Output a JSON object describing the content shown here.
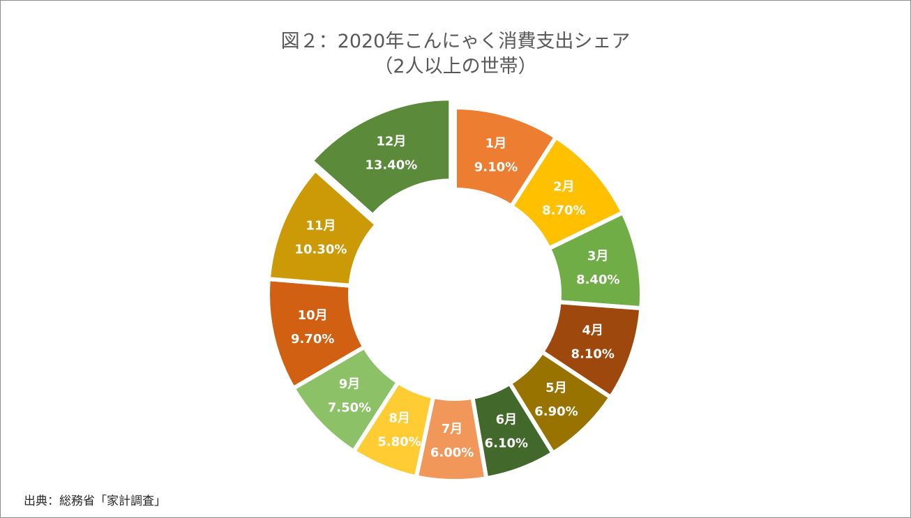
{
  "chart_data": {
    "type": "pie",
    "variant": "donut",
    "title": "図２：2020年こんにゃく消費支出シェア",
    "subtitle": "（2人以上の世帯）",
    "categories": [
      "1月",
      "2月",
      "3月",
      "4月",
      "5月",
      "6月",
      "7月",
      "8月",
      "9月",
      "10月",
      "11月",
      "12月"
    ],
    "values": [
      9.1,
      8.7,
      8.4,
      8.1,
      6.9,
      6.1,
      6.0,
      5.8,
      7.5,
      9.7,
      10.3,
      13.4
    ],
    "value_labels": [
      "9.10%",
      "8.70%",
      "8.40%",
      "8.10%",
      "6.90%",
      "6.10%",
      "6.00%",
      "5.80%",
      "7.50%",
      "9.70%",
      "10.30%",
      "13.40%"
    ],
    "colors": [
      "#ED7D31",
      "#FFC000",
      "#70AD47",
      "#9E480E",
      "#997300",
      "#43682B",
      "#F1975A",
      "#FFCD33",
      "#8CC168",
      "#D26012",
      "#CC9A06",
      "#5A8A3A"
    ],
    "exploded": [
      "12月"
    ],
    "legend": "none",
    "source": "出典：総務省「家計調査」"
  }
}
